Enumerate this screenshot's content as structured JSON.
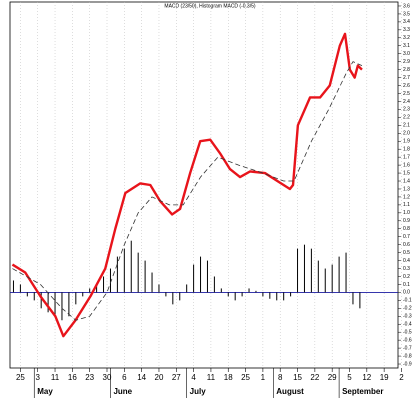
{
  "chart_data": {
    "type": "line",
    "title": "MACD (23/50), Histogram MACD (-0.3/5)",
    "xlim": [
      -3,
      109
    ],
    "xticks": [
      {
        "value": 0,
        "label": "25"
      },
      {
        "value": 5,
        "label": "3"
      },
      {
        "value": 10,
        "label": "11"
      },
      {
        "value": 15,
        "label": "16"
      },
      {
        "value": 20,
        "label": "23"
      },
      {
        "value": 25,
        "label": "30"
      },
      {
        "value": 30,
        "label": "6"
      },
      {
        "value": 35,
        "label": "14"
      },
      {
        "value": 40,
        "label": "20"
      },
      {
        "value": 45,
        "label": "27"
      },
      {
        "value": 50,
        "label": "4"
      },
      {
        "value": 55,
        "label": "11"
      },
      {
        "value": 60,
        "label": "18"
      },
      {
        "value": 65,
        "label": "25"
      },
      {
        "value": 70,
        "label": "1"
      },
      {
        "value": 75,
        "label": "8"
      },
      {
        "value": 80,
        "label": "15"
      },
      {
        "value": 85,
        "label": "22"
      },
      {
        "value": 90,
        "label": "29"
      },
      {
        "value": 95,
        "label": "5"
      },
      {
        "value": 100,
        "label": "12"
      },
      {
        "value": 105,
        "label": "19"
      },
      {
        "value": 110,
        "label": "2"
      }
    ],
    "months": [
      "May",
      "June",
      "July",
      "August",
      "September"
    ],
    "ylim": [
      -0.95,
      3.65
    ],
    "yticks": [
      3.6,
      3.5,
      3.4,
      3.3,
      3.2,
      3.1,
      {
        "value": 3.0,
        "label": "3.0"
      },
      2.9,
      2.8,
      2.7,
      2.6,
      2.5,
      2.4,
      2.3,
      2.2,
      2.1,
      {
        "value": 2.0,
        "label": "2.0"
      },
      1.9,
      1.8,
      1.7,
      1.6,
      1.5,
      1.4,
      1.3,
      1.2,
      1.1,
      {
        "value": 1.0,
        "label": "1.0"
      },
      0.9,
      0.8,
      0.7,
      0.6,
      0.5,
      0.4,
      0.3,
      0.2,
      0.1,
      {
        "value": 0.0,
        "label": "0.0"
      },
      -0.1,
      -0.2,
      -0.3,
      -0.4,
      -0.5,
      -0.6,
      -0.7,
      -0.8,
      -0.9
    ],
    "grid": true,
    "series": [
      {
        "color": "#e8141b",
        "dashed": false,
        "x": [
          -2.3,
          1.4,
          5.8,
          10.1,
          12.4,
          15.9,
          20.2,
          24.5,
          27.4,
          30.3,
          34.6,
          37.5,
          40.3,
          43.8,
          46.1,
          49,
          51.9,
          54.8,
          57.6,
          60.5,
          63.4,
          66.3,
          70.6,
          74.9,
          77.8,
          78.7,
          80.1,
          83.6,
          86.5,
          89.3,
          92.2,
          93.7,
          95.1,
          96.5,
          97.4,
          98.6
        ],
        "values": [
          0.35,
          0.25,
          -0.05,
          -0.3,
          -0.55,
          -0.35,
          -0.05,
          0.3,
          0.8,
          1.25,
          1.37,
          1.35,
          1.15,
          0.98,
          1.05,
          1.5,
          1.9,
          1.92,
          1.75,
          1.55,
          1.45,
          1.52,
          1.5,
          1.38,
          1.3,
          1.35,
          2.1,
          2.45,
          2.45,
          2.6,
          3.1,
          3.25,
          2.8,
          2.7,
          2.85,
          2.8
        ]
      },
      {
        "color": "#333333",
        "dashed": true,
        "x": [
          -2.3,
          5.8,
          12,
          16,
          20,
          25,
          30,
          34,
          38,
          43,
          47,
          52,
          57,
          63,
          70,
          76,
          79,
          84,
          89,
          94,
          96,
          98.6
        ],
        "values": [
          0.3,
          0.1,
          -0.2,
          -0.35,
          -0.3,
          0.0,
          0.6,
          1.0,
          1.2,
          1.1,
          1.1,
          1.45,
          1.7,
          1.6,
          1.5,
          1.4,
          1.4,
          1.9,
          2.3,
          2.75,
          2.9,
          2.85
        ]
      }
    ],
    "histogram": {
      "color": "#000000",
      "x": [
        -2,
        0,
        2,
        4,
        6,
        8,
        10,
        12,
        14,
        16,
        18,
        20,
        22,
        24,
        26,
        28,
        30,
        32,
        34,
        36,
        38,
        40,
        42,
        44,
        46,
        48,
        50,
        52,
        54,
        56,
        58,
        60,
        62,
        64,
        66,
        68,
        70,
        72,
        74,
        76,
        78,
        80,
        82,
        84,
        86,
        88,
        90,
        92,
        94,
        96,
        98
      ],
      "values": [
        0.15,
        0.1,
        -0.05,
        -0.1,
        -0.2,
        -0.25,
        -0.3,
        -0.35,
        -0.3,
        -0.15,
        -0.05,
        0.05,
        0.1,
        0.2,
        0.3,
        0.45,
        0.55,
        0.65,
        0.5,
        0.4,
        0.25,
        0.1,
        -0.05,
        -0.15,
        -0.1,
        0.1,
        0.35,
        0.45,
        0.4,
        0.2,
        0.05,
        -0.05,
        -0.1,
        -0.05,
        0.05,
        0.02,
        -0.05,
        -0.08,
        -0.1,
        -0.1,
        -0.05,
        0.55,
        0.6,
        0.55,
        0.4,
        0.3,
        0.35,
        0.45,
        0.5,
        -0.15,
        -0.2
      ]
    },
    "zero_line_color": "#1a1aa0"
  }
}
